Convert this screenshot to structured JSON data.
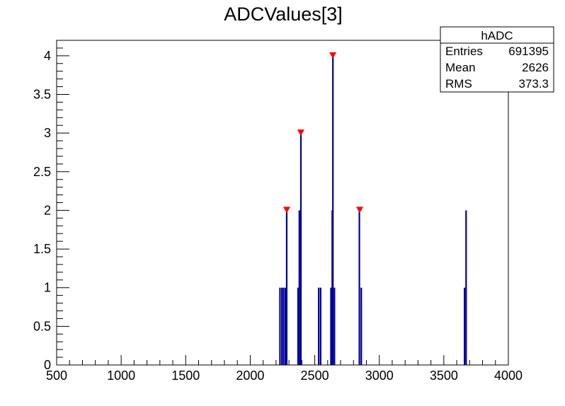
{
  "chart_data": {
    "type": "bar",
    "title": "ADCValues[3]",
    "xlabel": "",
    "ylabel": "",
    "xlim": [
      500,
      4000
    ],
    "ylim": [
      0,
      4.2
    ],
    "x_ticks": [
      500,
      1000,
      1500,
      2000,
      2500,
      3000,
      3500,
      4000
    ],
    "y_ticks": [
      0,
      0.5,
      1,
      1.5,
      2,
      2.5,
      3,
      3.5,
      4
    ],
    "grid": false,
    "line_color": "#000099",
    "marker_color": "#ff0000",
    "bins": [
      {
        "x": 2230,
        "value": 1
      },
      {
        "x": 2245,
        "value": 1
      },
      {
        "x": 2258,
        "value": 1
      },
      {
        "x": 2272,
        "value": 1
      },
      {
        "x": 2282,
        "value": 2
      },
      {
        "x": 2370,
        "value": 1
      },
      {
        "x": 2380,
        "value": 2
      },
      {
        "x": 2392,
        "value": 3
      },
      {
        "x": 2530,
        "value": 1
      },
      {
        "x": 2545,
        "value": 1
      },
      {
        "x": 2625,
        "value": 1
      },
      {
        "x": 2635,
        "value": 2
      },
      {
        "x": 2640,
        "value": 4
      },
      {
        "x": 2652,
        "value": 1
      },
      {
        "x": 2845,
        "value": 2
      },
      {
        "x": 2860,
        "value": 1
      },
      {
        "x": 3660,
        "value": 1
      },
      {
        "x": 3672,
        "value": 2
      }
    ],
    "peaks": [
      {
        "x": 2283,
        "value": 2
      },
      {
        "x": 2392,
        "value": 3
      },
      {
        "x": 2640,
        "value": 4
      },
      {
        "x": 2848,
        "value": 2
      }
    ],
    "stats_box": {
      "name": "hADC",
      "rows": [
        {
          "label": "Entries",
          "value": "691395"
        },
        {
          "label": "Mean",
          "value": "2626"
        },
        {
          "label": "RMS",
          "value": "373.3"
        }
      ]
    }
  }
}
